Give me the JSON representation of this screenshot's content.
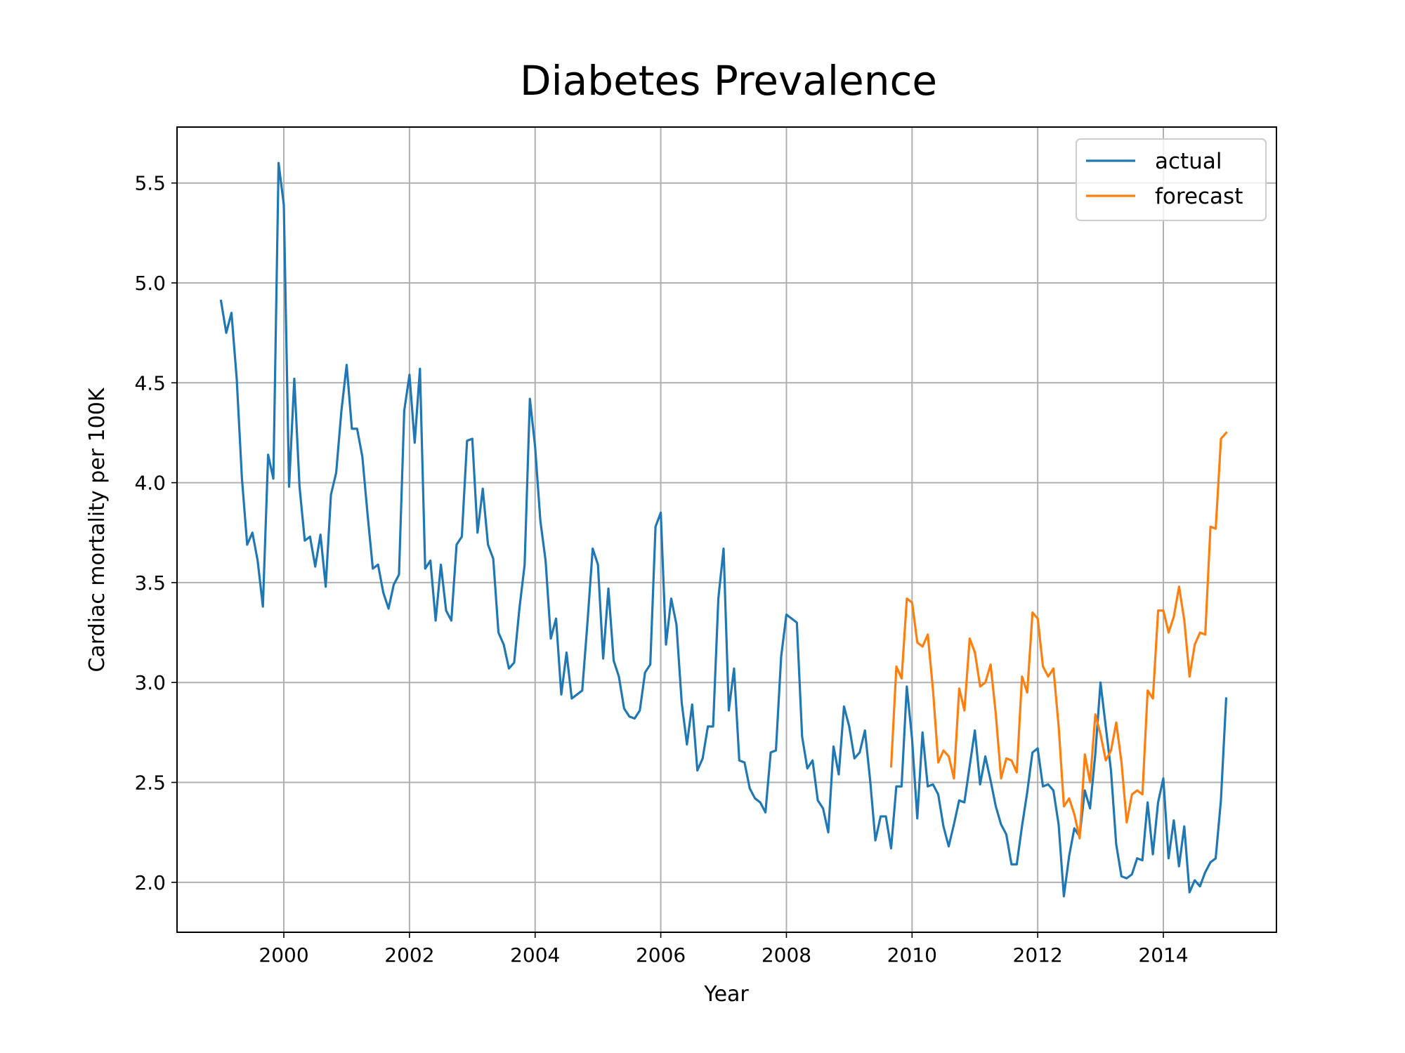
{
  "chart_data": {
    "type": "line",
    "title": "Diabetes Prevalence",
    "xlabel": "Year",
    "ylabel": "Cardiac mortality per 100K",
    "xlim": [
      1998.3,
      2015.8
    ],
    "ylim": [
      1.75,
      5.78
    ],
    "xticks": [
      2000,
      2002,
      2004,
      2006,
      2008,
      2010,
      2012,
      2014
    ],
    "xtick_labels": [
      "2000",
      "2002",
      "2004",
      "2006",
      "2008",
      "2010",
      "2012",
      "2014"
    ],
    "yticks": [
      2.0,
      2.5,
      3.0,
      3.5,
      4.0,
      4.5,
      5.0,
      5.5
    ],
    "ytick_labels": [
      "2.0",
      "2.5",
      "3.0",
      "3.5",
      "4.0",
      "4.5",
      "5.0",
      "5.5"
    ],
    "grid": true,
    "legend_position": "top-right",
    "series": [
      {
        "name": "actual",
        "color": "#1f77b4",
        "x_start": 1999.0,
        "x_step": 0.08333,
        "values": [
          4.91,
          4.75,
          4.85,
          4.52,
          4.02,
          3.69,
          3.75,
          3.61,
          3.38,
          4.14,
          4.02,
          5.6,
          5.39,
          3.98,
          4.52,
          3.98,
          3.71,
          3.73,
          3.58,
          3.74,
          3.48,
          3.94,
          4.05,
          4.36,
          4.59,
          4.27,
          4.27,
          4.13,
          3.84,
          3.57,
          3.59,
          3.45,
          3.37,
          3.49,
          3.54,
          4.36,
          4.54,
          4.2,
          4.57,
          3.57,
          3.61,
          3.31,
          3.59,
          3.36,
          3.31,
          3.69,
          3.73,
          4.21,
          4.22,
          3.75,
          3.97,
          3.69,
          3.62,
          3.25,
          3.19,
          3.07,
          3.1,
          3.37,
          3.59,
          4.42,
          4.18,
          3.81,
          3.61,
          3.22,
          3.32,
          2.94,
          3.15,
          2.92,
          2.94,
          2.96,
          3.3,
          3.67,
          3.59,
          3.12,
          3.47,
          3.11,
          3.03,
          2.87,
          2.83,
          2.82,
          2.86,
          3.05,
          3.09,
          3.78,
          3.85,
          3.19,
          3.42,
          3.29,
          2.9,
          2.69,
          2.89,
          2.56,
          2.62,
          2.78,
          2.78,
          3.42,
          3.67,
          2.86,
          3.07,
          2.61,
          2.6,
          2.47,
          2.42,
          2.4,
          2.35,
          2.65,
          2.66,
          3.13,
          3.34,
          3.32,
          3.3,
          2.73,
          2.57,
          2.61,
          2.41,
          2.37,
          2.25,
          2.68,
          2.54,
          2.88,
          2.78,
          2.62,
          2.65,
          2.76,
          2.51,
          2.21,
          2.33,
          2.33,
          2.17,
          2.48,
          2.48,
          2.98,
          2.72,
          2.32,
          2.75,
          2.48,
          2.49,
          2.44,
          2.28,
          2.18,
          2.29,
          2.41,
          2.4,
          2.58,
          2.76,
          2.49,
          2.63,
          2.51,
          2.38,
          2.29,
          2.24,
          2.09,
          2.09,
          2.28,
          2.45,
          2.65,
          2.67,
          2.48,
          2.49,
          2.46,
          2.29,
          1.93,
          2.13,
          2.27,
          2.23,
          2.46,
          2.37,
          2.64,
          3.0,
          2.78,
          2.56,
          2.19,
          2.03,
          2.02,
          2.04,
          2.12,
          2.11,
          2.4,
          2.14,
          2.4,
          2.52,
          2.12,
          2.31,
          2.08,
          2.28,
          1.95,
          2.01,
          1.98,
          2.05,
          2.1,
          2.12,
          2.41,
          2.92
        ]
      },
      {
        "name": "forecast",
        "color": "#ff7f0e",
        "x_start": 2009.667,
        "x_step": 0.08333,
        "values": [
          2.58,
          3.08,
          3.02,
          3.42,
          3.4,
          3.2,
          3.18,
          3.24,
          2.96,
          2.6,
          2.66,
          2.63,
          2.52,
          2.97,
          2.86,
          3.22,
          3.15,
          2.98,
          3.0,
          3.09,
          2.84,
          2.52,
          2.62,
          2.61,
          2.55,
          3.03,
          2.95,
          3.35,
          3.32,
          3.08,
          3.03,
          3.07,
          2.78,
          2.38,
          2.42,
          2.34,
          2.22,
          2.64,
          2.5,
          2.84,
          2.74,
          2.61,
          2.66,
          2.8,
          2.6,
          2.3,
          2.44,
          2.46,
          2.44,
          2.96,
          2.92,
          3.36,
          3.36,
          3.25,
          3.33,
          3.48,
          3.31,
          3.03,
          3.19,
          3.25,
          3.24,
          3.78,
          3.77,
          4.22,
          4.25
        ]
      }
    ]
  }
}
